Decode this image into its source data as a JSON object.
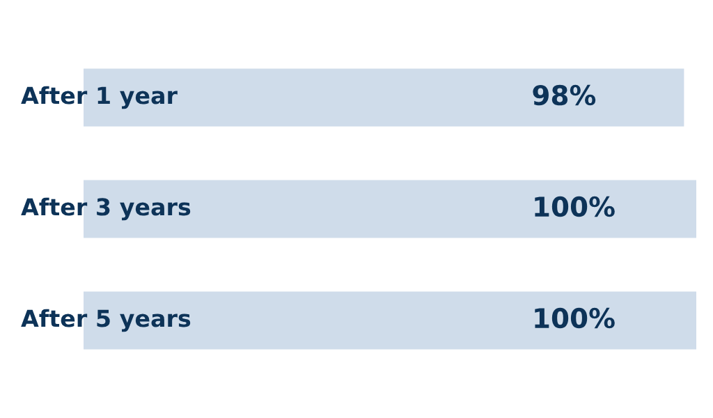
{
  "chart_data": {
    "type": "bar",
    "orientation": "horizontal",
    "categories": [
      "After 1 year",
      "After 3 years",
      "After 5 years"
    ],
    "values": [
      98,
      100,
      100
    ],
    "value_labels": [
      "98%",
      "100%",
      "100%"
    ],
    "color": "#cfdcea",
    "xlim": [
      0,
      100
    ]
  }
}
